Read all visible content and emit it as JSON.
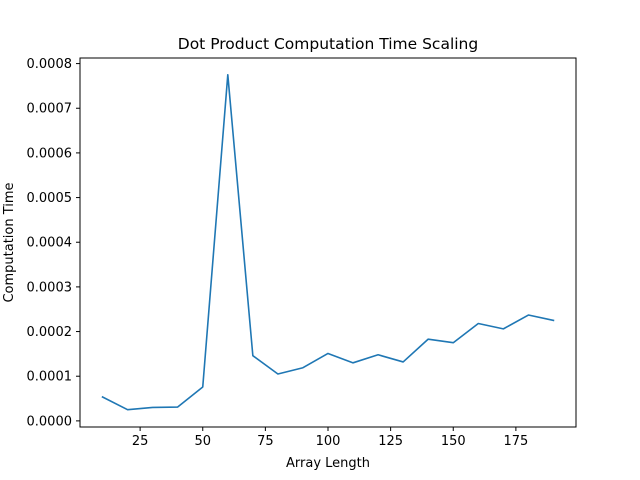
{
  "chart_data": {
    "type": "line",
    "title": "Dot Product Computation Time Scaling",
    "xlabel": "Array Length",
    "ylabel": "Computation Time",
    "xlim": [
      1,
      199
    ],
    "ylim": [
      -1.37e-05,
      0.0008125
    ],
    "grid": false,
    "line_color": "#1f77b4",
    "x_ticks": [
      25,
      50,
      75,
      100,
      125,
      150,
      175
    ],
    "x_tick_labels": [
      "25",
      "50",
      "75",
      "100",
      "125",
      "150",
      "175"
    ],
    "y_ticks": [
      0,
      0.0001,
      0.0002,
      0.0003,
      0.0004,
      0.0005,
      0.0006,
      0.0007,
      0.0008
    ],
    "y_tick_labels": [
      "0.0000",
      "0.0001",
      "0.0002",
      "0.0003",
      "0.0004",
      "0.0005",
      "0.0006",
      "0.0007",
      "0.0008"
    ],
    "x": [
      10,
      20,
      30,
      40,
      50,
      60,
      70,
      80,
      90,
      100,
      110,
      120,
      130,
      140,
      150,
      160,
      170,
      180,
      190
    ],
    "y": [
      5.35e-05,
      2.5e-05,
      3e-05,
      3.1e-05,
      7.6e-05,
      0.000775,
      0.000146,
      0.000105,
      0.000119,
      0.000151,
      0.00013,
      0.000148,
      0.000132,
      0.000183,
      0.000175,
      0.000218,
      0.000206,
      0.000237,
      0.000225
    ]
  }
}
